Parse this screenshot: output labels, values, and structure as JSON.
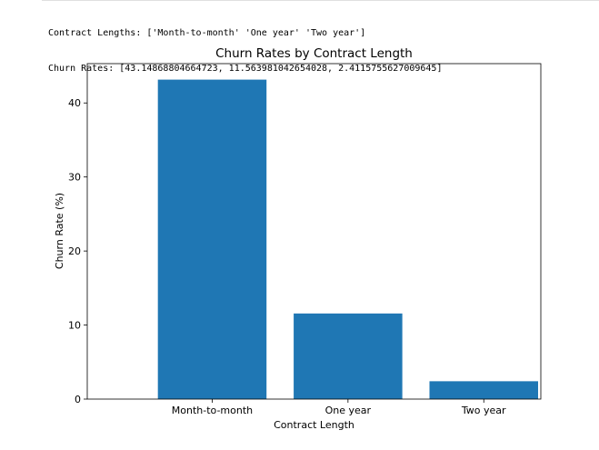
{
  "output": {
    "lines": [
      "Contract Lengths: ['Month-to-month' 'One year' 'Two year']",
      "Churn Rates: [43.14868804664723, 11.563981042654028, 2.4115755627009645]"
    ]
  },
  "chart_data": {
    "type": "bar",
    "title": "Churn Rates by Contract Length",
    "xlabel": "Contract Length",
    "ylabel": "Churn Rate (%)",
    "categories": [
      "Month-to-month",
      "One year",
      "Two year"
    ],
    "values": [
      43.14868804664723,
      11.563981042654028,
      2.4115755627009645
    ],
    "ylim": [
      0,
      45.31
    ],
    "yticks": [
      0,
      10,
      20,
      30,
      40
    ],
    "grid": false,
    "bar_color": "#1f77b4"
  }
}
